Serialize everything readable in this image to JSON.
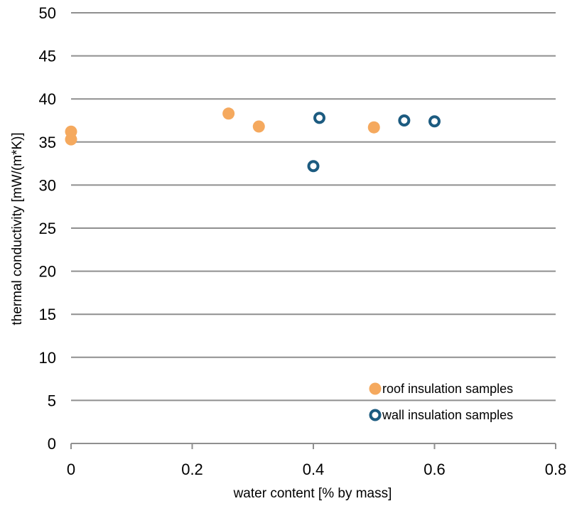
{
  "chart_data": {
    "type": "scatter",
    "title": "",
    "xlabel": "water content [% by mass]",
    "ylabel": "thermal conductivity [mW/(m*K)]",
    "xlim": [
      0,
      0.8
    ],
    "ylim": [
      0,
      50
    ],
    "x_ticks": [
      "0",
      "0.2",
      "0.4",
      "0.6",
      "0.8"
    ],
    "y_ticks": [
      "0",
      "5",
      "10",
      "15",
      "20",
      "25",
      "30",
      "35",
      "40",
      "45",
      "50"
    ],
    "grid": "horizontal",
    "legend_position": "bottom-right",
    "series": [
      {
        "name": "roof insulation samples",
        "marker": "filled-circle",
        "color": "#f5a95e",
        "points": [
          {
            "x": 0.0,
            "y": 36.2
          },
          {
            "x": 0.0,
            "y": 35.3
          },
          {
            "x": 0.26,
            "y": 38.3
          },
          {
            "x": 0.31,
            "y": 36.8
          },
          {
            "x": 0.5,
            "y": 36.7
          }
        ]
      },
      {
        "name": "wall insulation samples",
        "marker": "open-circle",
        "color": "#1c5b80",
        "points": [
          {
            "x": 0.41,
            "y": 37.8
          },
          {
            "x": 0.4,
            "y": 32.2
          },
          {
            "x": 0.55,
            "y": 37.5
          },
          {
            "x": 0.6,
            "y": 37.4
          }
        ]
      }
    ]
  }
}
